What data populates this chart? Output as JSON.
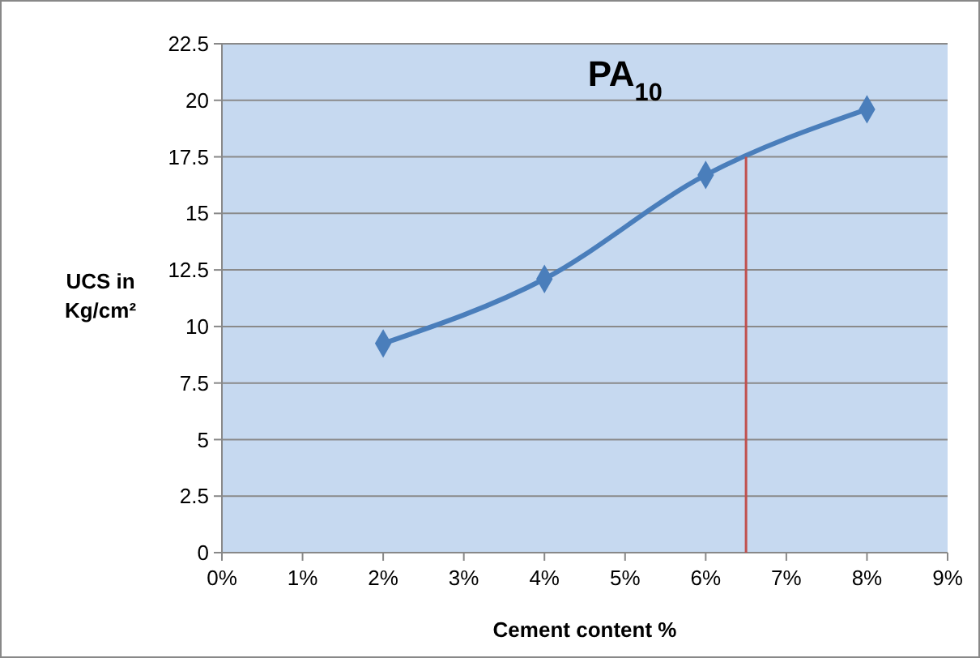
{
  "chart_data": {
    "type": "line",
    "title": "PA$_{10}$",
    "xlabel": "Cement content %",
    "ylabel": "UCS in Kg/cm²",
    "x": [
      2,
      4,
      6,
      8
    ],
    "series": [
      {
        "color": "#4a7ebb",
        "values": [
          9.25,
          12.1,
          16.7,
          19.6
        ],
        "marker": "diamond",
        "line_style": "solid"
      },
      {
        "color": "#c0504d",
        "x": [
          6.5,
          6.5
        ],
        "values": [
          0,
          17.5
        ],
        "marker": "none",
        "line_style": "solid"
      }
    ],
    "xlim": [
      0,
      9
    ],
    "xticks": [
      {
        "value": 0,
        "label": "0%"
      },
      {
        "value": 1,
        "label": "1%"
      },
      {
        "value": 2,
        "label": "2%"
      },
      {
        "value": 3,
        "label": "3%"
      },
      {
        "value": 4,
        "label": "4%"
      },
      {
        "value": 5,
        "label": "5%"
      },
      {
        "value": 6,
        "label": "6%"
      },
      {
        "value": 7,
        "label": "7%"
      },
      {
        "value": 8,
        "label": "8%"
      },
      {
        "value": 9,
        "label": "9%"
      }
    ],
    "ylim": [
      0,
      22.5
    ],
    "yticks": [
      0,
      2.5,
      5,
      7.5,
      10,
      12.5,
      15,
      17.5,
      20,
      22.5
    ],
    "grid": "y"
  }
}
